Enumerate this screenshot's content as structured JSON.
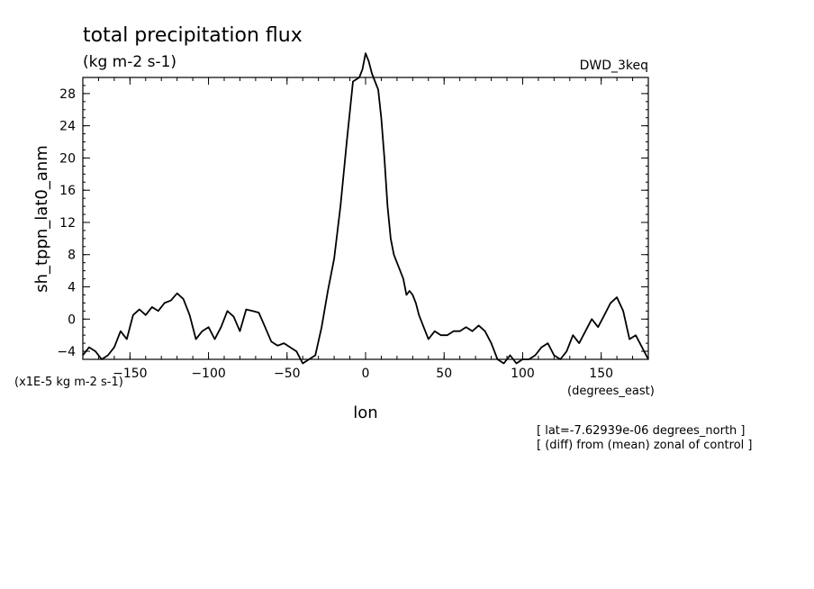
{
  "chart_data": {
    "type": "line",
    "title": "total precipitation flux",
    "units_label": "(kg m-2 s-1)",
    "dataset_label": "DWD_3keq",
    "xlabel": "lon",
    "xunits": "(degrees_east)",
    "ylabel": "sh_tppn_lat0_anm",
    "yscale_label": "(x1E-5 kg m-2 s-1)",
    "notes": [
      "[ lat=-7.62939e-06 degrees_north ]",
      "[ (diff) from (mean) zonal of control ]"
    ],
    "xlim": [
      -180,
      180
    ],
    "ylim": [
      -5,
      30
    ],
    "xticks": [
      -150,
      -100,
      -50,
      0,
      50,
      100,
      150
    ],
    "yticks": [
      -4,
      0,
      4,
      8,
      12,
      16,
      20,
      24,
      28
    ],
    "x": [
      -180,
      -176,
      -172,
      -168,
      -164,
      -160,
      -156,
      -152,
      -148,
      -144,
      -140,
      -136,
      -132,
      -128,
      -124,
      -120,
      -116,
      -112,
      -108,
      -104,
      -100,
      -96,
      -92,
      -88,
      -84,
      -80,
      -76,
      -72,
      -68,
      -64,
      -60,
      -56,
      -52,
      -48,
      -44,
      -40,
      -36,
      -32,
      -28,
      -24,
      -20,
      -16,
      -12,
      -8,
      -4,
      -2,
      0,
      2,
      4,
      6,
      8,
      10,
      12,
      14,
      16,
      18,
      20,
      22,
      24,
      26,
      28,
      30,
      32,
      34,
      36,
      38,
      40,
      44,
      48,
      52,
      56,
      60,
      64,
      68,
      72,
      76,
      80,
      84,
      88,
      92,
      96,
      100,
      104,
      108,
      112,
      116,
      120,
      124,
      128,
      132,
      136,
      140,
      144,
      148,
      152,
      156,
      160,
      164,
      168,
      172,
      176,
      180
    ],
    "y": [
      -4.5,
      -3.5,
      -4.0,
      -5.0,
      -4.5,
      -3.5,
      -1.5,
      -2.5,
      0.5,
      1.2,
      0.5,
      1.5,
      1.0,
      2.0,
      2.3,
      3.2,
      2.5,
      0.5,
      -2.5,
      -1.5,
      -1.0,
      -2.5,
      -1.0,
      1.0,
      0.3,
      -1.5,
      1.2,
      1.0,
      0.8,
      -1.0,
      -2.8,
      -3.3,
      -3.0,
      -3.5,
      -4.0,
      -5.5,
      -5.0,
      -4.5,
      -1.0,
      3.5,
      7.5,
      14.0,
      22.0,
      29.5,
      30.0,
      31.0,
      33.0,
      32.0,
      30.5,
      29.5,
      28.5,
      25.0,
      20.0,
      14.0,
      10.0,
      8.0,
      7.0,
      6.0,
      5.0,
      3.0,
      3.5,
      3.0,
      2.0,
      0.5,
      -0.5,
      -1.5,
      -2.5,
      -1.5,
      -2.0,
      -2.0,
      -1.5,
      -1.5,
      -1.0,
      -1.5,
      -0.8,
      -1.5,
      -3.0,
      -5.0,
      -5.5,
      -4.5,
      -5.5,
      -5.0,
      -5.0,
      -4.5,
      -3.5,
      -3.0,
      -4.5,
      -5.0,
      -4.0,
      -2.0,
      -3.0,
      -1.5,
      0.0,
      -1.0,
      0.5,
      2.0,
      2.7,
      1.0,
      -2.5,
      -2.0,
      -3.5,
      -5.0
    ]
  }
}
